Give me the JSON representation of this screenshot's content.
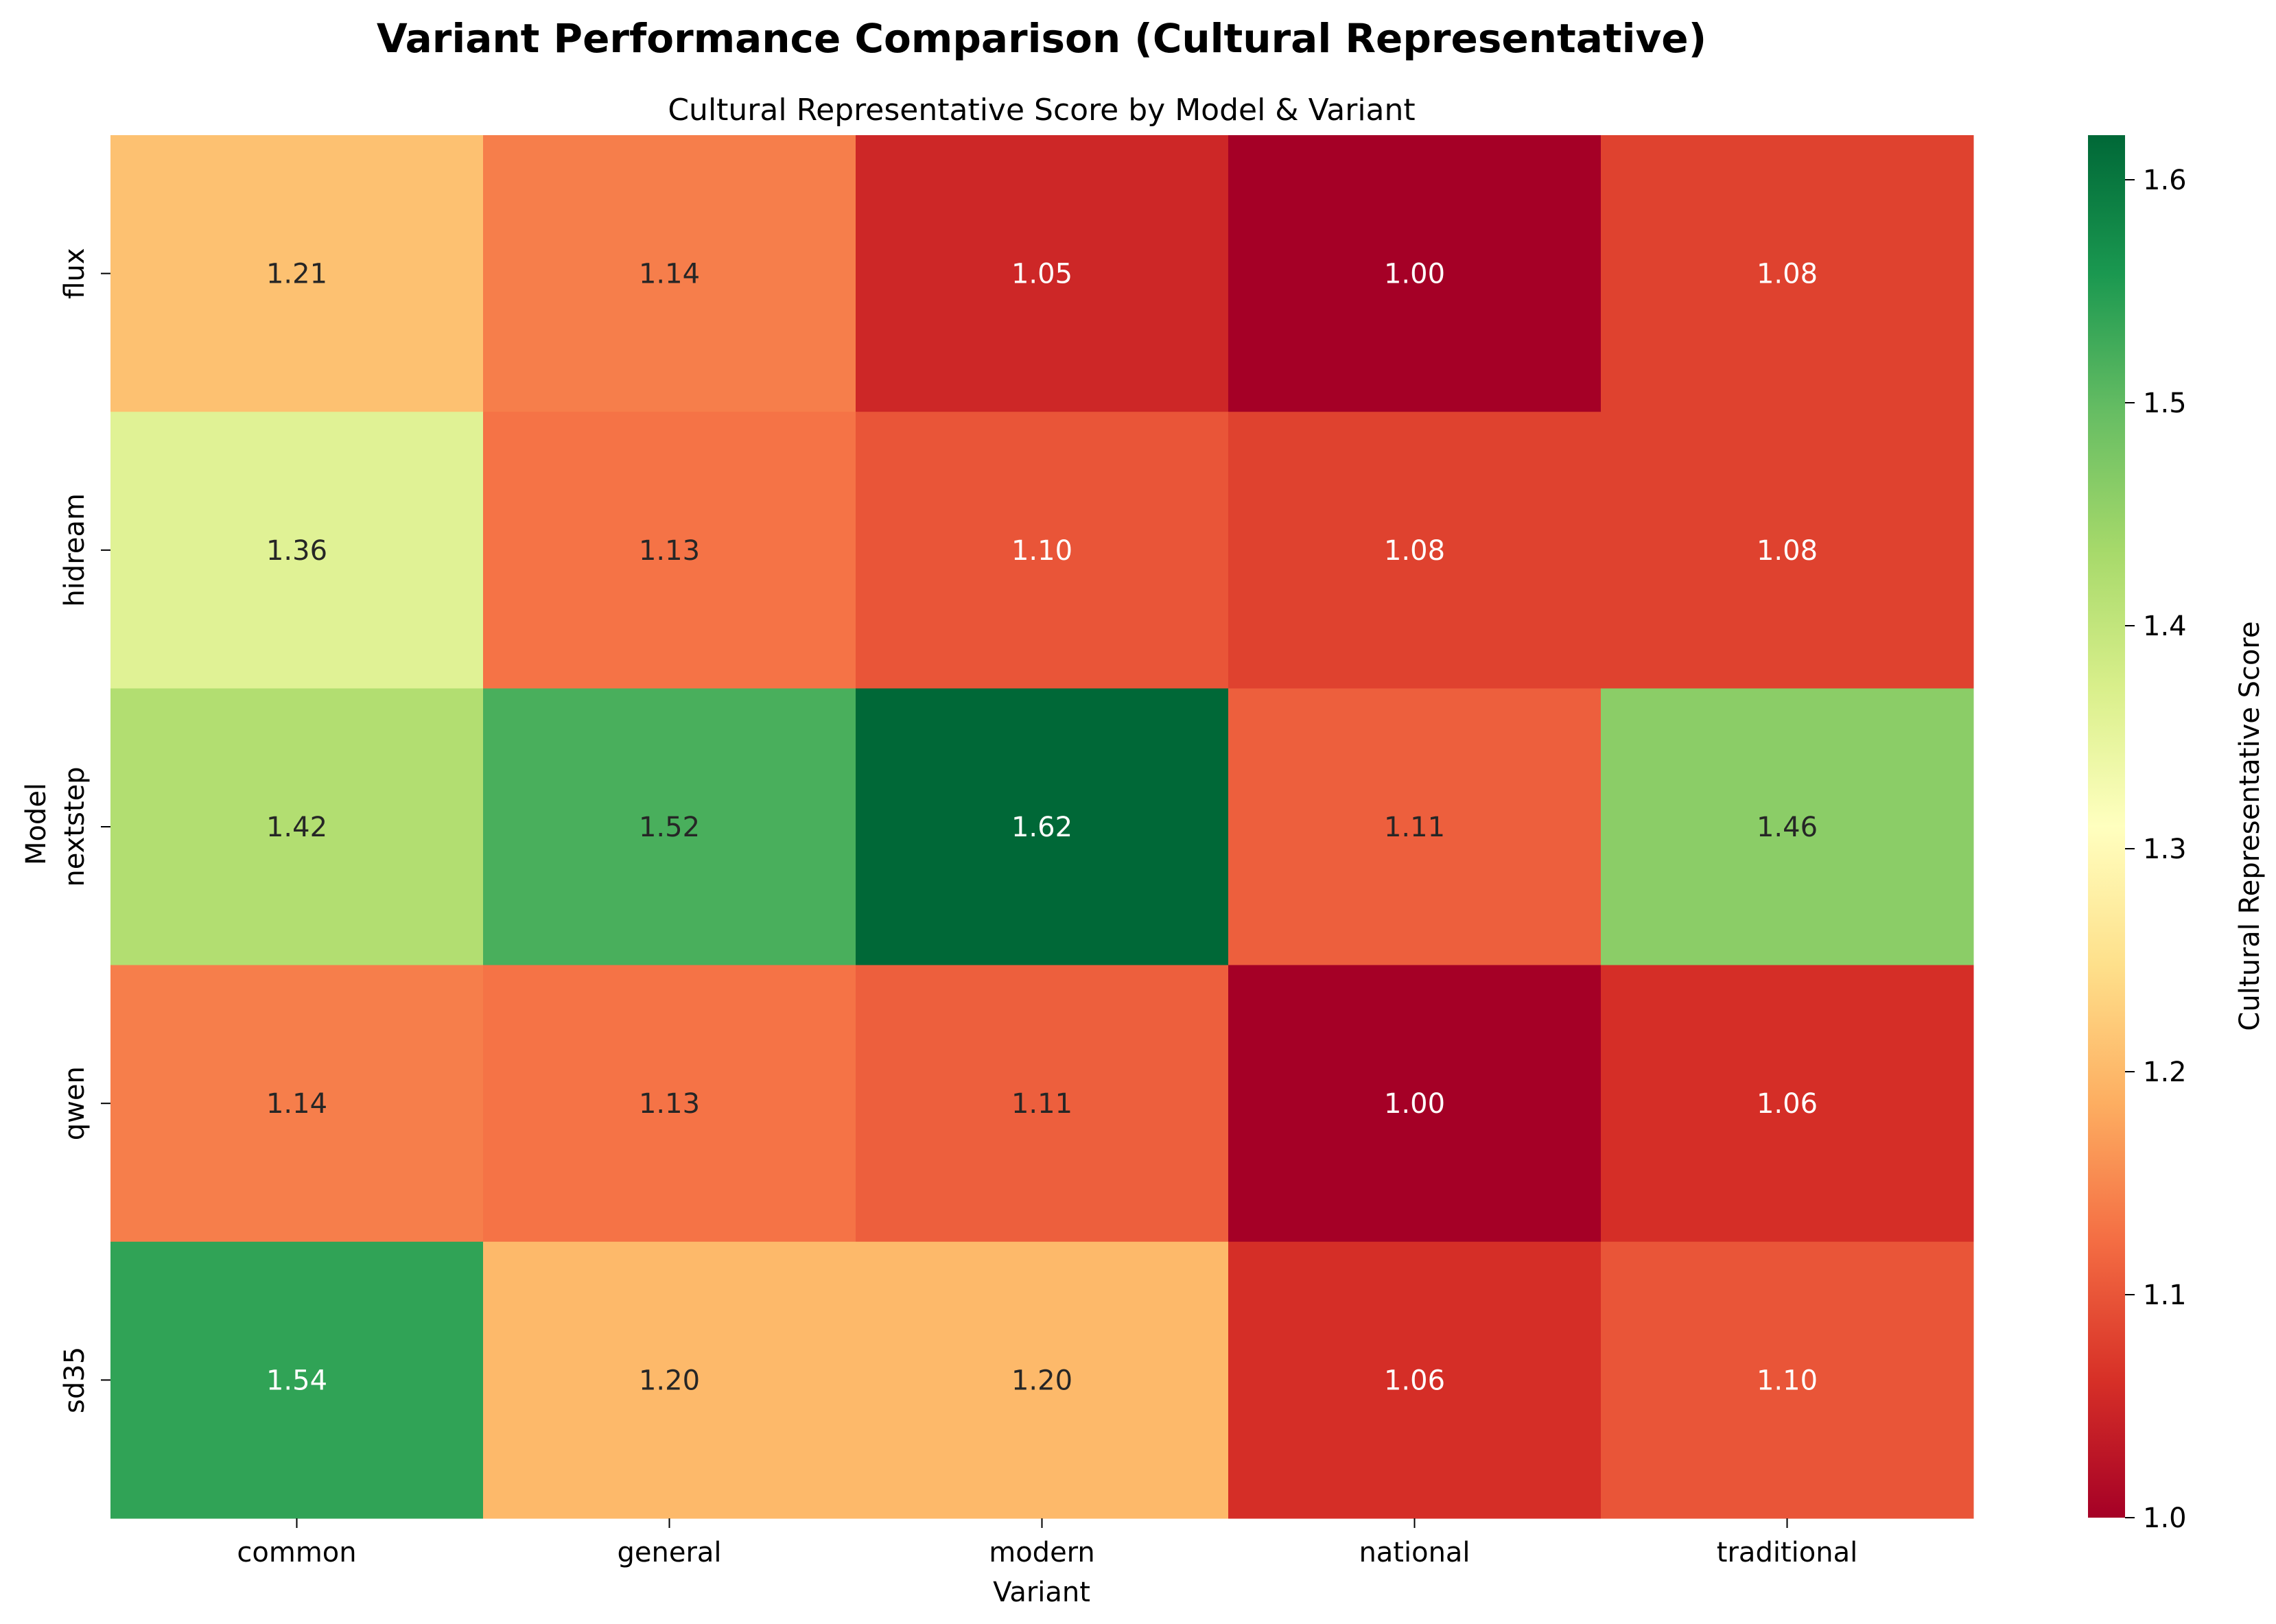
{
  "chart_data": {
    "type": "heatmap",
    "suptitle": "Variant Performance Comparison (Cultural Representative)",
    "title": "Cultural Representative Score by Model & Variant",
    "xlabel": "Variant",
    "ylabel": "Model",
    "x_categories": [
      "common",
      "general",
      "modern",
      "national",
      "traditional"
    ],
    "y_categories": [
      "flux",
      "hidream",
      "nextstep",
      "qwen",
      "sd35"
    ],
    "values": [
      [
        1.21,
        1.14,
        1.05,
        1.0,
        1.08
      ],
      [
        1.36,
        1.13,
        1.1,
        1.08,
        1.08
      ],
      [
        1.42,
        1.52,
        1.62,
        1.11,
        1.46
      ],
      [
        1.14,
        1.13,
        1.11,
        1.0,
        1.06
      ],
      [
        1.54,
        1.2,
        1.2,
        1.06,
        1.1
      ]
    ],
    "colormap": "RdYlGn",
    "colorbar": {
      "label": "Cultural Representative Score",
      "range": [
        1.0,
        1.62
      ],
      "ticks": [
        "1.0",
        "1.1",
        "1.2",
        "1.3",
        "1.4",
        "1.5",
        "1.6"
      ]
    },
    "annotation_format": "2 decimals"
  }
}
